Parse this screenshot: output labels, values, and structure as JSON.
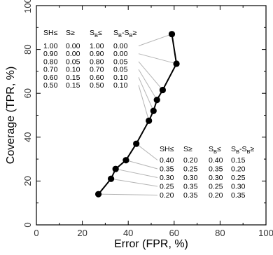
{
  "chart_data": {
    "type": "line",
    "title": "",
    "xlabel": "Error (FPR, %)",
    "ylabel": "Coverage (TPR, %)",
    "xlim": [
      0,
      100
    ],
    "ylim": [
      0,
      100
    ],
    "xticks": [
      "0",
      "20",
      "40",
      "60",
      "80",
      "100"
    ],
    "yticks": [
      "0",
      "20",
      "40",
      "60",
      "80",
      "100"
    ],
    "grid": false,
    "legend": "none",
    "series": [
      {
        "color": "#000000",
        "x": [
          59,
          61,
          55,
          52.5,
          51,
          49,
          43.5,
          39,
          34.5,
          32.5,
          27
        ],
        "y": [
          87,
          73.5,
          61.5,
          57,
          52,
          47.5,
          37,
          29.5,
          25.5,
          21,
          14
        ]
      }
    ],
    "tables": [
      {
        "headers": [
          "SH≤",
          "S≥",
          "S_B≤",
          "S_B-S_B≥"
        ],
        "rows": [
          [
            "1.00",
            "0.00",
            "1.00",
            "0.00"
          ],
          [
            "0.90",
            "0.00",
            "0.90",
            "0.00"
          ],
          [
            "0.80",
            "0.05",
            "0.80",
            "0.05"
          ],
          [
            "0.70",
            "0.10",
            "0.70",
            "0.05"
          ],
          [
            "0.60",
            "0.15",
            "0.60",
            "0.10"
          ],
          [
            "0.50",
            "0.15",
            "0.50",
            "0.10"
          ]
        ],
        "point_index": [
          0,
          1,
          2,
          3,
          4,
          5
        ]
      },
      {
        "headers": [
          "SH≤",
          "S≥",
          "S_B≤",
          "S_B-S_B≥"
        ],
        "rows": [
          [
            "0.40",
            "0.20",
            "0.40",
            "0.15"
          ],
          [
            "0.35",
            "0.25",
            "0.35",
            "0.20"
          ],
          [
            "0.30",
            "0.30",
            "0.30",
            "0.25"
          ],
          [
            "0.25",
            "0.35",
            "0.25",
            "0.30"
          ],
          [
            "0.20",
            "0.35",
            "0.20",
            "0.35"
          ]
        ],
        "point_index": [
          6,
          7,
          8,
          9,
          10
        ]
      }
    ]
  }
}
